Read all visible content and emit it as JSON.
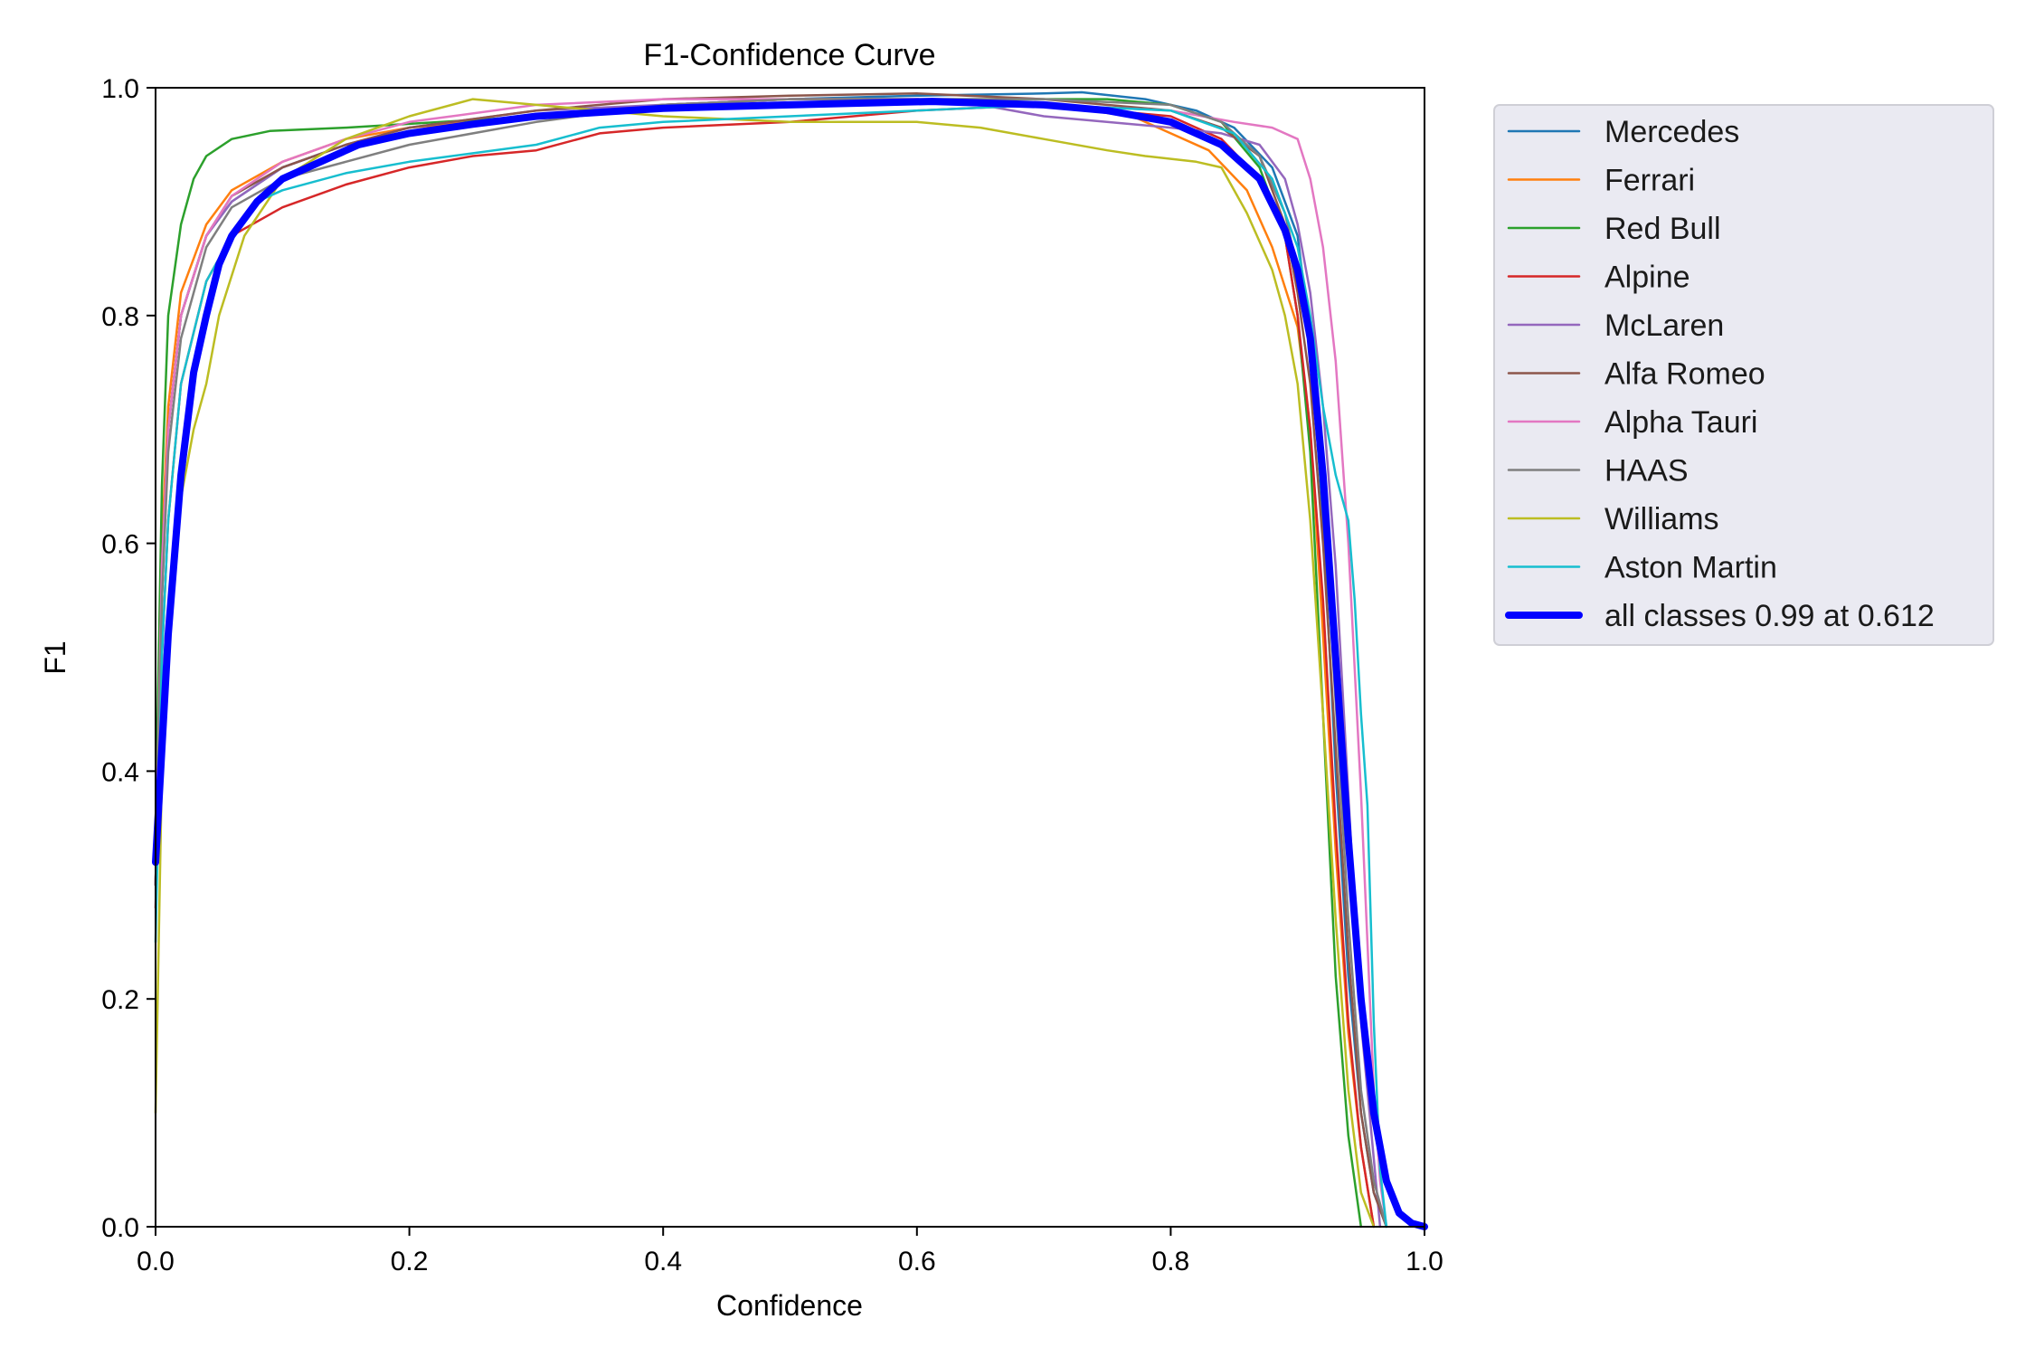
{
  "chart_data": {
    "type": "line",
    "title": "F1-Confidence Curve",
    "xlabel": "Confidence",
    "ylabel": "F1",
    "xlim": [
      0.0,
      1.0
    ],
    "ylim": [
      0.0,
      1.0
    ],
    "x_ticks": [
      "0.0",
      "0.2",
      "0.4",
      "0.6",
      "0.8",
      "1.0"
    ],
    "y_ticks": [
      "0.0",
      "0.2",
      "0.4",
      "0.6",
      "0.8",
      "1.0"
    ],
    "grid": false,
    "legend_position": "outside-right-top",
    "series": [
      {
        "name": "Mercedes",
        "color": "#1f77b4",
        "points": [
          [
            0,
            0.3
          ],
          [
            0.005,
            0.55
          ],
          [
            0.01,
            0.7
          ],
          [
            0.02,
            0.8
          ],
          [
            0.04,
            0.87
          ],
          [
            0.06,
            0.9
          ],
          [
            0.1,
            0.93
          ],
          [
            0.15,
            0.95
          ],
          [
            0.2,
            0.96
          ],
          [
            0.3,
            0.975
          ],
          [
            0.4,
            0.985
          ],
          [
            0.5,
            0.99
          ],
          [
            0.6,
            0.993
          ],
          [
            0.7,
            0.995
          ],
          [
            0.73,
            0.996
          ],
          [
            0.78,
            0.99
          ],
          [
            0.82,
            0.98
          ],
          [
            0.85,
            0.965
          ],
          [
            0.88,
            0.93
          ],
          [
            0.9,
            0.87
          ],
          [
            0.91,
            0.78
          ],
          [
            0.92,
            0.62
          ],
          [
            0.93,
            0.4
          ],
          [
            0.94,
            0.22
          ],
          [
            0.95,
            0.1
          ],
          [
            0.96,
            0.03
          ],
          [
            0.97,
            0.0
          ]
        ]
      },
      {
        "name": "Ferrari",
        "color": "#ff7f0e",
        "points": [
          [
            0,
            0.3
          ],
          [
            0.005,
            0.6
          ],
          [
            0.01,
            0.72
          ],
          [
            0.02,
            0.82
          ],
          [
            0.04,
            0.88
          ],
          [
            0.06,
            0.91
          ],
          [
            0.1,
            0.935
          ],
          [
            0.15,
            0.955
          ],
          [
            0.2,
            0.965
          ],
          [
            0.3,
            0.975
          ],
          [
            0.4,
            0.985
          ],
          [
            0.5,
            0.99
          ],
          [
            0.6,
            0.99
          ],
          [
            0.7,
            0.985
          ],
          [
            0.77,
            0.975
          ],
          [
            0.8,
            0.96
          ],
          [
            0.83,
            0.945
          ],
          [
            0.86,
            0.91
          ],
          [
            0.88,
            0.86
          ],
          [
            0.9,
            0.79
          ],
          [
            0.91,
            0.7
          ],
          [
            0.92,
            0.52
          ],
          [
            0.93,
            0.33
          ],
          [
            0.94,
            0.17
          ],
          [
            0.95,
            0.07
          ],
          [
            0.96,
            0.0
          ]
        ]
      },
      {
        "name": "Red Bull",
        "color": "#2ca02c",
        "points": [
          [
            0,
            0.35
          ],
          [
            0.005,
            0.65
          ],
          [
            0.01,
            0.8
          ],
          [
            0.02,
            0.88
          ],
          [
            0.03,
            0.92
          ],
          [
            0.04,
            0.94
          ],
          [
            0.06,
            0.955
          ],
          [
            0.09,
            0.962
          ],
          [
            0.15,
            0.965
          ],
          [
            0.3,
            0.975
          ],
          [
            0.45,
            0.985
          ],
          [
            0.6,
            0.99
          ],
          [
            0.7,
            0.99
          ],
          [
            0.75,
            0.99
          ],
          [
            0.8,
            0.985
          ],
          [
            0.84,
            0.97
          ],
          [
            0.87,
            0.93
          ],
          [
            0.89,
            0.87
          ],
          [
            0.9,
            0.8
          ],
          [
            0.91,
            0.68
          ],
          [
            0.92,
            0.45
          ],
          [
            0.93,
            0.22
          ],
          [
            0.94,
            0.08
          ],
          [
            0.95,
            0.0
          ]
        ]
      },
      {
        "name": "Alpine",
        "color": "#d62728",
        "points": [
          [
            0,
            0.28
          ],
          [
            0.005,
            0.5
          ],
          [
            0.01,
            0.62
          ],
          [
            0.02,
            0.74
          ],
          [
            0.04,
            0.83
          ],
          [
            0.06,
            0.87
          ],
          [
            0.1,
            0.895
          ],
          [
            0.15,
            0.915
          ],
          [
            0.2,
            0.93
          ],
          [
            0.25,
            0.94
          ],
          [
            0.3,
            0.945
          ],
          [
            0.35,
            0.96
          ],
          [
            0.4,
            0.965
          ],
          [
            0.5,
            0.97
          ],
          [
            0.6,
            0.98
          ],
          [
            0.7,
            0.985
          ],
          [
            0.8,
            0.975
          ],
          [
            0.84,
            0.955
          ],
          [
            0.87,
            0.92
          ],
          [
            0.89,
            0.87
          ],
          [
            0.9,
            0.8
          ],
          [
            0.91,
            0.7
          ],
          [
            0.92,
            0.55
          ],
          [
            0.93,
            0.35
          ],
          [
            0.94,
            0.18
          ],
          [
            0.95,
            0.07
          ],
          [
            0.96,
            0.0
          ]
        ]
      },
      {
        "name": "McLaren",
        "color": "#9467bd",
        "points": [
          [
            0,
            0.3
          ],
          [
            0.005,
            0.58
          ],
          [
            0.01,
            0.7
          ],
          [
            0.02,
            0.8
          ],
          [
            0.04,
            0.87
          ],
          [
            0.06,
            0.9
          ],
          [
            0.1,
            0.93
          ],
          [
            0.15,
            0.95
          ],
          [
            0.2,
            0.965
          ],
          [
            0.3,
            0.98
          ],
          [
            0.4,
            0.985
          ],
          [
            0.5,
            0.99
          ],
          [
            0.6,
            0.99
          ],
          [
            0.65,
            0.985
          ],
          [
            0.7,
            0.975
          ],
          [
            0.8,
            0.965
          ],
          [
            0.84,
            0.96
          ],
          [
            0.87,
            0.95
          ],
          [
            0.89,
            0.92
          ],
          [
            0.9,
            0.88
          ],
          [
            0.91,
            0.82
          ],
          [
            0.92,
            0.72
          ],
          [
            0.93,
            0.58
          ],
          [
            0.94,
            0.38
          ],
          [
            0.95,
            0.18
          ],
          [
            0.96,
            0.06
          ],
          [
            0.965,
            0.0
          ]
        ]
      },
      {
        "name": "Alfa Romeo",
        "color": "#8c564b",
        "points": [
          [
            0,
            0.3
          ],
          [
            0.005,
            0.58
          ],
          [
            0.01,
            0.7
          ],
          [
            0.02,
            0.8
          ],
          [
            0.04,
            0.87
          ],
          [
            0.06,
            0.905
          ],
          [
            0.1,
            0.93
          ],
          [
            0.15,
            0.95
          ],
          [
            0.2,
            0.965
          ],
          [
            0.3,
            0.98
          ],
          [
            0.4,
            0.99
          ],
          [
            0.5,
            0.993
          ],
          [
            0.6,
            0.995
          ],
          [
            0.7,
            0.99
          ],
          [
            0.8,
            0.98
          ],
          [
            0.84,
            0.965
          ],
          [
            0.87,
            0.94
          ],
          [
            0.89,
            0.88
          ],
          [
            0.9,
            0.82
          ],
          [
            0.91,
            0.74
          ],
          [
            0.92,
            0.6
          ],
          [
            0.93,
            0.42
          ],
          [
            0.94,
            0.24
          ],
          [
            0.95,
            0.1
          ],
          [
            0.96,
            0.03
          ],
          [
            0.97,
            0.0
          ]
        ]
      },
      {
        "name": "Alpha Tauri",
        "color": "#e377c2",
        "points": [
          [
            0,
            0.3
          ],
          [
            0.005,
            0.58
          ],
          [
            0.01,
            0.7
          ],
          [
            0.02,
            0.8
          ],
          [
            0.04,
            0.87
          ],
          [
            0.06,
            0.905
          ],
          [
            0.1,
            0.935
          ],
          [
            0.15,
            0.955
          ],
          [
            0.2,
            0.97
          ],
          [
            0.3,
            0.985
          ],
          [
            0.4,
            0.99
          ],
          [
            0.5,
            0.99
          ],
          [
            0.6,
            0.99
          ],
          [
            0.7,
            0.985
          ],
          [
            0.8,
            0.98
          ],
          [
            0.85,
            0.97
          ],
          [
            0.88,
            0.965
          ],
          [
            0.9,
            0.955
          ],
          [
            0.91,
            0.92
          ],
          [
            0.92,
            0.86
          ],
          [
            0.93,
            0.76
          ],
          [
            0.94,
            0.6
          ],
          [
            0.95,
            0.38
          ],
          [
            0.955,
            0.25
          ],
          [
            0.96,
            0.12
          ],
          [
            0.965,
            0.04
          ],
          [
            0.97,
            0.0
          ]
        ]
      },
      {
        "name": "HAAS",
        "color": "#7f7f7f",
        "points": [
          [
            0,
            0.3
          ],
          [
            0.005,
            0.55
          ],
          [
            0.01,
            0.68
          ],
          [
            0.02,
            0.78
          ],
          [
            0.04,
            0.86
          ],
          [
            0.06,
            0.895
          ],
          [
            0.1,
            0.92
          ],
          [
            0.15,
            0.935
          ],
          [
            0.2,
            0.95
          ],
          [
            0.3,
            0.97
          ],
          [
            0.4,
            0.985
          ],
          [
            0.5,
            0.99
          ],
          [
            0.6,
            0.99
          ],
          [
            0.7,
            0.99
          ],
          [
            0.8,
            0.985
          ],
          [
            0.84,
            0.97
          ],
          [
            0.87,
            0.94
          ],
          [
            0.89,
            0.89
          ],
          [
            0.9,
            0.84
          ],
          [
            0.91,
            0.77
          ],
          [
            0.92,
            0.64
          ],
          [
            0.93,
            0.46
          ],
          [
            0.94,
            0.27
          ],
          [
            0.95,
            0.12
          ],
          [
            0.96,
            0.04
          ],
          [
            0.97,
            0.0
          ]
        ]
      },
      {
        "name": "Williams",
        "color": "#bcbd22",
        "points": [
          [
            0,
            0.1
          ],
          [
            0.005,
            0.4
          ],
          [
            0.01,
            0.52
          ],
          [
            0.02,
            0.64
          ],
          [
            0.03,
            0.7
          ],
          [
            0.04,
            0.74
          ],
          [
            0.05,
            0.8
          ],
          [
            0.07,
            0.87
          ],
          [
            0.1,
            0.92
          ],
          [
            0.15,
            0.955
          ],
          [
            0.2,
            0.975
          ],
          [
            0.25,
            0.99
          ],
          [
            0.3,
            0.985
          ],
          [
            0.4,
            0.975
          ],
          [
            0.5,
            0.97
          ],
          [
            0.6,
            0.97
          ],
          [
            0.65,
            0.965
          ],
          [
            0.7,
            0.955
          ],
          [
            0.75,
            0.945
          ],
          [
            0.78,
            0.94
          ],
          [
            0.82,
            0.935
          ],
          [
            0.84,
            0.93
          ],
          [
            0.86,
            0.89
          ],
          [
            0.88,
            0.84
          ],
          [
            0.89,
            0.8
          ],
          [
            0.9,
            0.74
          ],
          [
            0.91,
            0.62
          ],
          [
            0.92,
            0.45
          ],
          [
            0.93,
            0.27
          ],
          [
            0.94,
            0.12
          ],
          [
            0.95,
            0.03
          ],
          [
            0.96,
            0.0
          ]
        ]
      },
      {
        "name": "Aston Martin",
        "color": "#17becf",
        "points": [
          [
            0,
            0.25
          ],
          [
            0.005,
            0.5
          ],
          [
            0.01,
            0.62
          ],
          [
            0.02,
            0.74
          ],
          [
            0.04,
            0.83
          ],
          [
            0.06,
            0.87
          ],
          [
            0.08,
            0.9
          ],
          [
            0.1,
            0.91
          ],
          [
            0.15,
            0.925
          ],
          [
            0.2,
            0.935
          ],
          [
            0.3,
            0.95
          ],
          [
            0.35,
            0.965
          ],
          [
            0.4,
            0.97
          ],
          [
            0.5,
            0.975
          ],
          [
            0.6,
            0.98
          ],
          [
            0.7,
            0.985
          ],
          [
            0.8,
            0.98
          ],
          [
            0.85,
            0.96
          ],
          [
            0.88,
            0.92
          ],
          [
            0.9,
            0.86
          ],
          [
            0.91,
            0.8
          ],
          [
            0.92,
            0.72
          ],
          [
            0.93,
            0.66
          ],
          [
            0.94,
            0.62
          ],
          [
            0.945,
            0.55
          ],
          [
            0.95,
            0.45
          ],
          [
            0.955,
            0.37
          ],
          [
            0.96,
            0.18
          ],
          [
            0.965,
            0.05
          ],
          [
            0.97,
            0.0
          ]
        ]
      },
      {
        "name": "all classes 0.99 at 0.612",
        "color": "#0000ff",
        "bold": true,
        "points": [
          [
            0,
            0.32
          ],
          [
            0.005,
            0.42
          ],
          [
            0.01,
            0.52
          ],
          [
            0.02,
            0.66
          ],
          [
            0.03,
            0.75
          ],
          [
            0.04,
            0.8
          ],
          [
            0.05,
            0.845
          ],
          [
            0.06,
            0.87
          ],
          [
            0.08,
            0.9
          ],
          [
            0.1,
            0.92
          ],
          [
            0.13,
            0.935
          ],
          [
            0.16,
            0.95
          ],
          [
            0.2,
            0.96
          ],
          [
            0.25,
            0.968
          ],
          [
            0.3,
            0.975
          ],
          [
            0.4,
            0.982
          ],
          [
            0.5,
            0.985
          ],
          [
            0.612,
            0.988
          ],
          [
            0.7,
            0.985
          ],
          [
            0.75,
            0.98
          ],
          [
            0.8,
            0.97
          ],
          [
            0.84,
            0.95
          ],
          [
            0.87,
            0.92
          ],
          [
            0.89,
            0.875
          ],
          [
            0.9,
            0.84
          ],
          [
            0.91,
            0.78
          ],
          [
            0.92,
            0.66
          ],
          [
            0.93,
            0.5
          ],
          [
            0.94,
            0.34
          ],
          [
            0.95,
            0.2
          ],
          [
            0.96,
            0.1
          ],
          [
            0.97,
            0.04
          ],
          [
            0.98,
            0.012
          ],
          [
            0.99,
            0.003
          ],
          [
            1.0,
            0.0
          ]
        ]
      }
    ]
  }
}
